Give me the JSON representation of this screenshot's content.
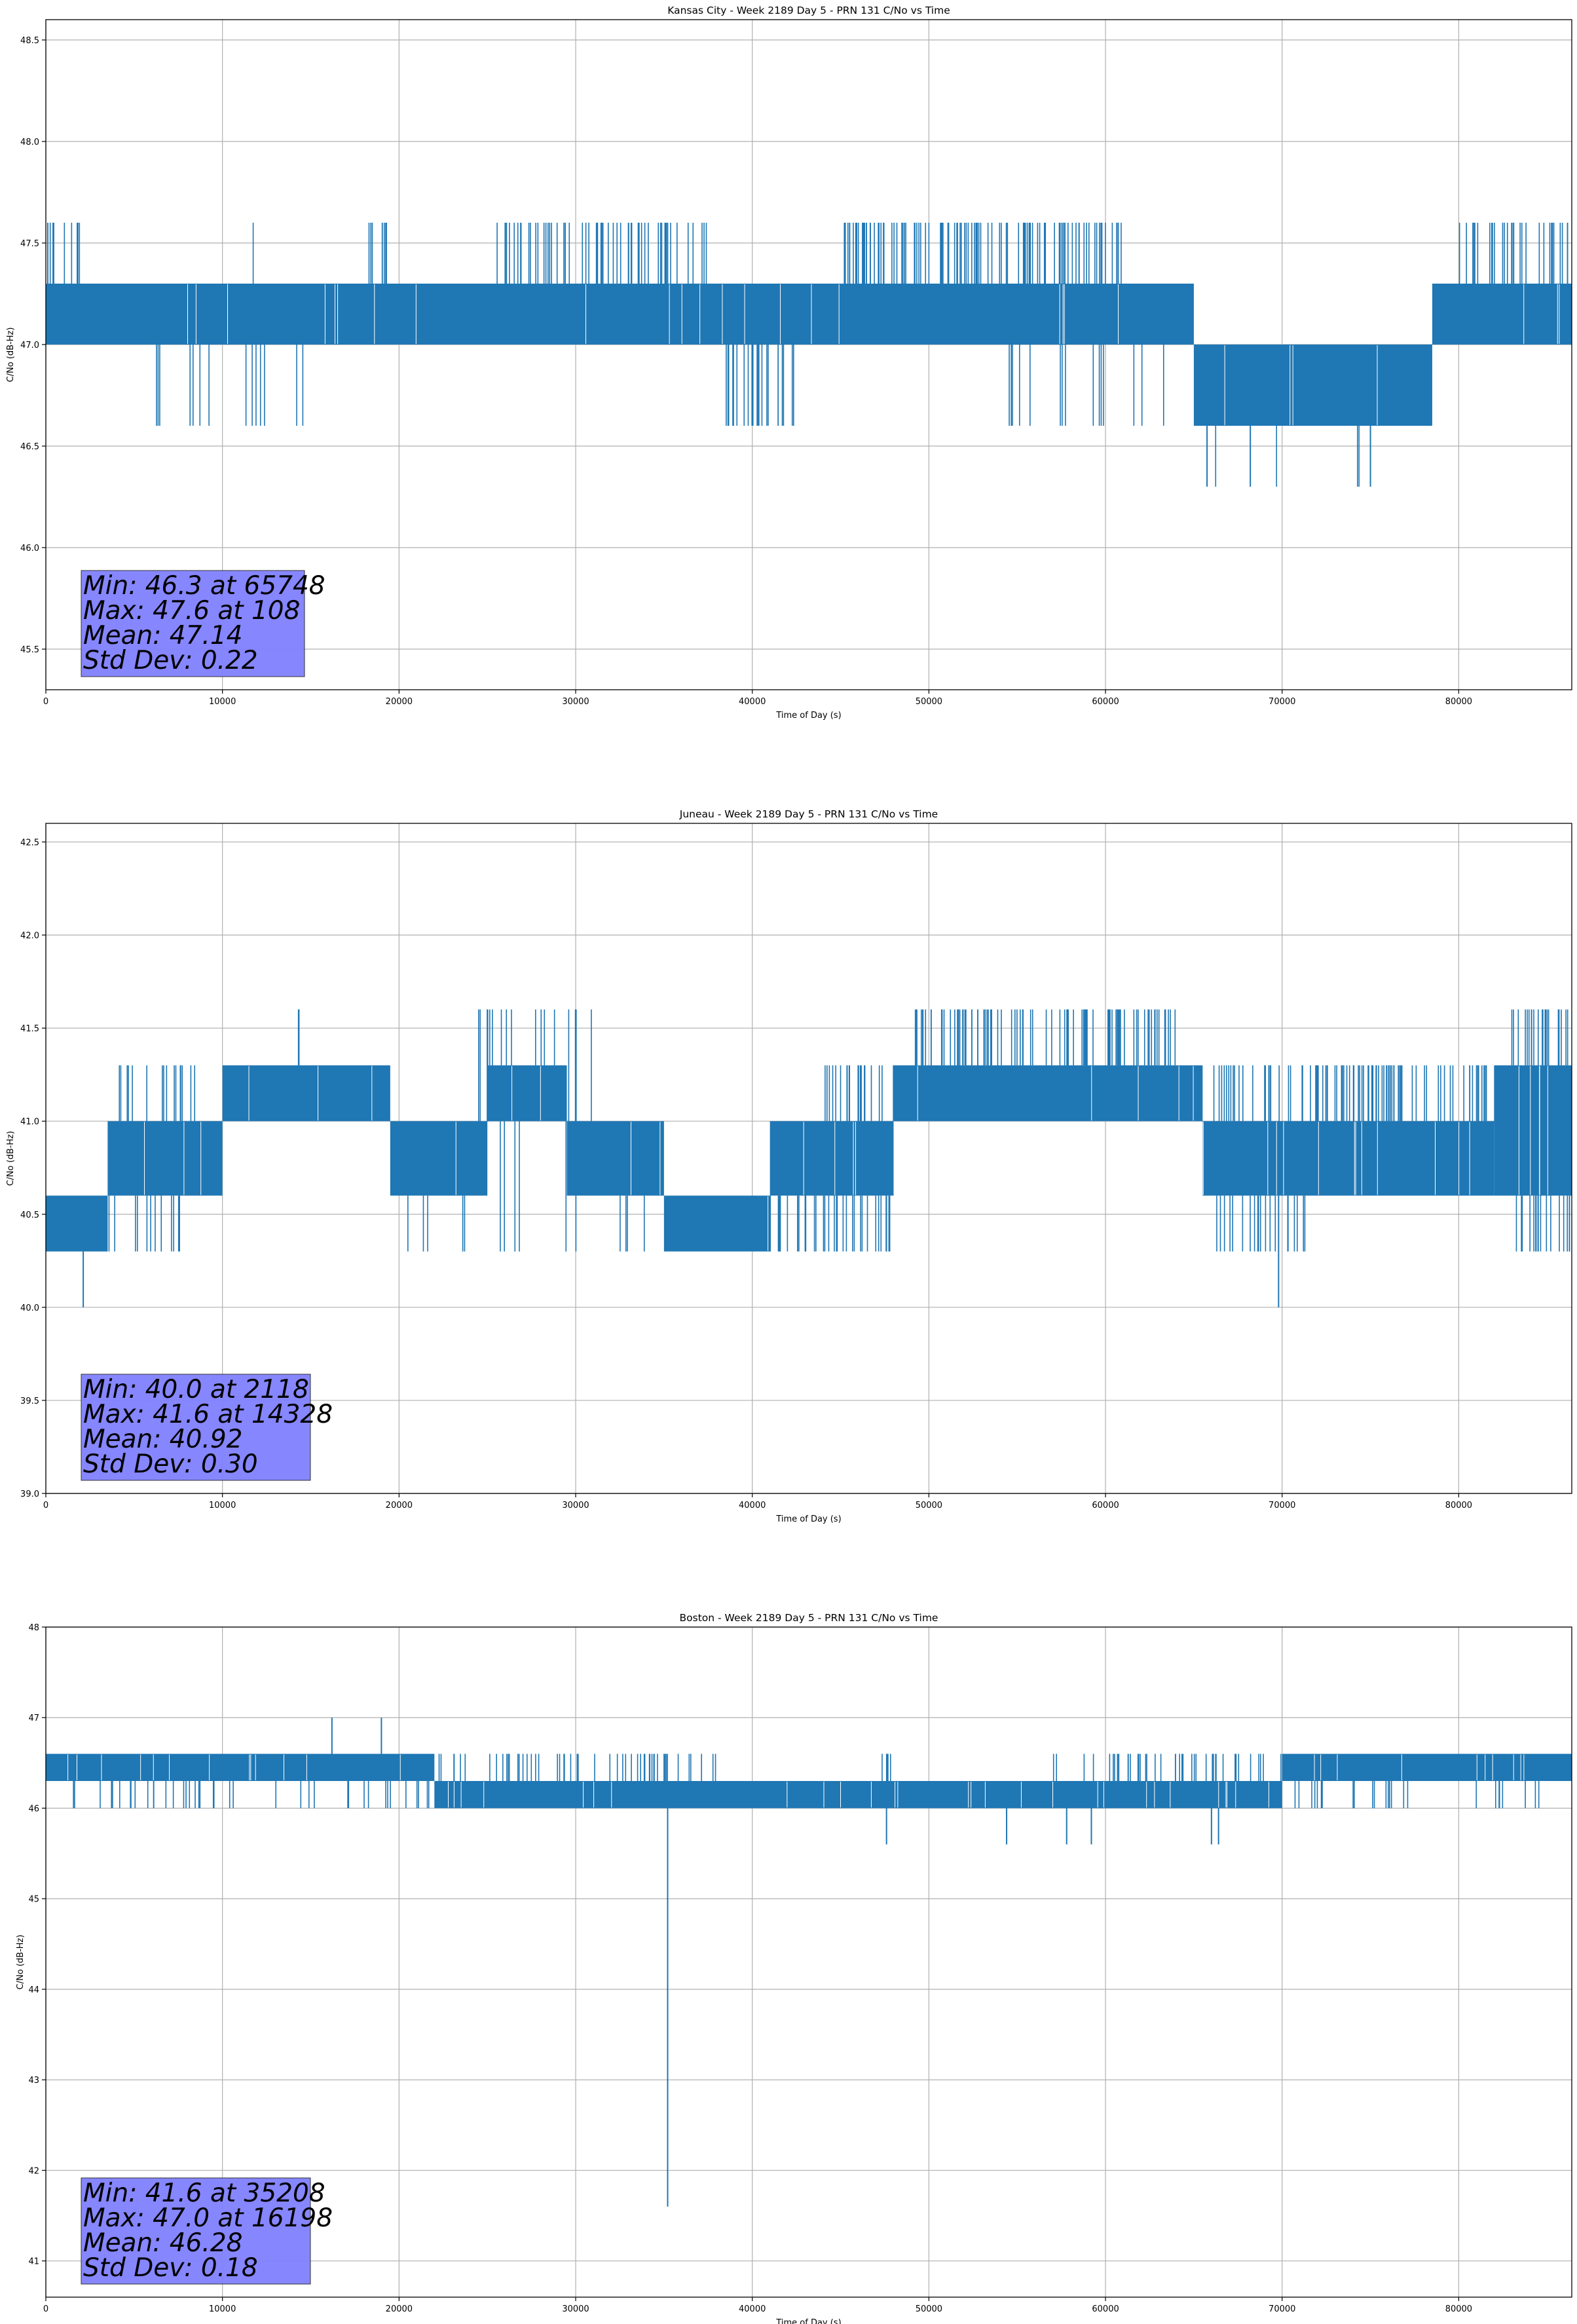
{
  "figure": {
    "panels": [
      {
        "title": "Kansas City - Week 2189 Day 5 - PRN 131 C/No vs Time",
        "xlabel": "Time of Day (s)",
        "ylabel": "C/No (dB-Hz)",
        "stats": [
          "Min: 46.3 at 65748",
          "Max: 47.6 at 108",
          "Mean: 47.14",
          "Std Dev: 0.22"
        ]
      },
      {
        "title": "Juneau - Week 2189 Day 5 - PRN 131 C/No vs Time",
        "xlabel": "Time of Day (s)",
        "ylabel": "C/No (dB-Hz)",
        "stats": [
          "Min: 40.0 at 2118",
          "Max: 41.6 at 14328",
          "Mean: 40.92",
          "Std Dev: 0.30"
        ]
      },
      {
        "title": "Boston - Week 2189 Day 5 - PRN 131 C/No vs Time",
        "xlabel": "Time of Day (s)",
        "ylabel": "C/No (dB-Hz)",
        "stats": [
          "Min: 41.6 at 35208",
          "Max: 47.0 at 16198",
          "Mean: 46.28",
          "Std Dev: 0.18"
        ]
      }
    ]
  },
  "chart_data": [
    {
      "type": "line",
      "title": "Kansas City - Week 2189 Day 5 - PRN 131 C/No vs Time",
      "xlabel": "Time of Day (s)",
      "ylabel": "C/No (dB-Hz)",
      "xlim": [
        0,
        86400
      ],
      "ylim": [
        45.3,
        48.6
      ],
      "xticks": [
        0,
        10000,
        20000,
        30000,
        40000,
        50000,
        60000,
        70000,
        80000
      ],
      "yticks": [
        45.5,
        46.0,
        46.5,
        47.0,
        47.5,
        48.0,
        48.5
      ],
      "ytick_format": 1,
      "grid": true,
      "color": "#1f77b4",
      "series": [
        {
          "segments": [
            {
              "x0": 0,
              "x1": 65000,
              "lo": 47.0,
              "hi": 47.3
            },
            {
              "x0": 65000,
              "x1": 78500,
              "lo": 46.6,
              "hi": 47.0
            },
            {
              "x0": 78500,
              "x1": 86400,
              "lo": 47.0,
              "hi": 47.3
            }
          ],
          "high_bursts": [
            {
              "x0": 0,
              "x1": 2000,
              "level": 47.6,
              "density": 0.25
            },
            {
              "x0": 11500,
              "x1": 11800,
              "level": 47.6,
              "density": 0.3
            },
            {
              "x0": 18000,
              "x1": 19500,
              "level": 47.6,
              "density": 0.35
            },
            {
              "x0": 25500,
              "x1": 37500,
              "level": 47.6,
              "density": 0.3
            },
            {
              "x0": 45000,
              "x1": 61000,
              "level": 47.6,
              "density": 0.4
            },
            {
              "x0": 80000,
              "x1": 86400,
              "level": 47.6,
              "density": 0.3
            }
          ],
          "low_bursts": [
            {
              "x0": 4000,
              "x1": 15000,
              "level": 46.6,
              "density": 0.08
            },
            {
              "x0": 38500,
              "x1": 42500,
              "level": 46.6,
              "density": 0.35
            },
            {
              "x0": 54500,
              "x1": 63500,
              "level": 46.6,
              "density": 0.1
            },
            {
              "x0": 65500,
              "x1": 75500,
              "level": 46.3,
              "density": 0.03
            }
          ],
          "spikes": [
            {
              "x": 65748,
              "y": 46.3
            },
            {
              "x": 68200,
              "y": 46.3
            },
            {
              "x": 75000,
              "y": 46.3
            },
            {
              "x": 108,
              "y": 47.6
            }
          ]
        }
      ],
      "stats": {
        "min": 46.3,
        "min_at": 65748,
        "max": 47.6,
        "max_at": 108,
        "mean": 47.14,
        "std_dev": 0.22
      }
    },
    {
      "type": "line",
      "title": "Juneau - Week 2189 Day 5 - PRN 131 C/No vs Time",
      "xlabel": "Time of Day (s)",
      "ylabel": "C/No (dB-Hz)",
      "xlim": [
        0,
        86400
      ],
      "ylim": [
        39.0,
        42.6
      ],
      "xticks": [
        0,
        10000,
        20000,
        30000,
        40000,
        50000,
        60000,
        70000,
        80000
      ],
      "yticks": [
        39.0,
        39.5,
        40.0,
        40.5,
        41.0,
        41.5,
        42.0,
        42.5
      ],
      "ytick_format": 1,
      "grid": true,
      "color": "#1f77b4",
      "series": [
        {
          "segments": [
            {
              "x0": 0,
              "x1": 3500,
              "lo": 40.3,
              "hi": 40.6
            },
            {
              "x0": 3500,
              "x1": 10000,
              "lo": 40.6,
              "hi": 41.0
            },
            {
              "x0": 10000,
              "x1": 19500,
              "lo": 41.0,
              "hi": 41.3
            },
            {
              "x0": 19500,
              "x1": 25000,
              "lo": 40.6,
              "hi": 41.0
            },
            {
              "x0": 25000,
              "x1": 29500,
              "lo": 41.0,
              "hi": 41.3
            },
            {
              "x0": 29500,
              "x1": 35000,
              "lo": 40.6,
              "hi": 41.0
            },
            {
              "x0": 35000,
              "x1": 41000,
              "lo": 40.3,
              "hi": 40.6
            },
            {
              "x0": 41000,
              "x1": 48000,
              "lo": 40.6,
              "hi": 41.0
            },
            {
              "x0": 48000,
              "x1": 65500,
              "lo": 41.0,
              "hi": 41.3
            },
            {
              "x0": 65500,
              "x1": 82000,
              "lo": 40.6,
              "hi": 41.0
            },
            {
              "x0": 82000,
              "x1": 86400,
              "lo": 40.6,
              "hi": 41.3
            }
          ],
          "high_bursts": [
            {
              "x0": 4000,
              "x1": 9000,
              "level": 41.3,
              "density": 0.2
            },
            {
              "x0": 14300,
              "x1": 14400,
              "level": 41.6,
              "density": 0.5
            },
            {
              "x0": 24500,
              "x1": 32000,
              "level": 41.6,
              "density": 0.15
            },
            {
              "x0": 44000,
              "x1": 49000,
              "level": 41.3,
              "density": 0.3
            },
            {
              "x0": 49000,
              "x1": 64000,
              "level": 41.6,
              "density": 0.35
            },
            {
              "x0": 66000,
              "x1": 82000,
              "level": 41.3,
              "density": 0.35
            },
            {
              "x0": 83000,
              "x1": 86400,
              "level": 41.6,
              "density": 0.4
            }
          ],
          "low_bursts": [
            {
              "x0": 3000,
              "x1": 8000,
              "level": 40.3,
              "density": 0.15
            },
            {
              "x0": 20000,
              "x1": 35000,
              "level": 40.3,
              "density": 0.06
            },
            {
              "x0": 41000,
              "x1": 48000,
              "level": 40.3,
              "density": 0.3
            },
            {
              "x0": 66000,
              "x1": 72000,
              "level": 40.3,
              "density": 0.2
            },
            {
              "x0": 83000,
              "x1": 86400,
              "level": 40.3,
              "density": 0.3
            }
          ],
          "spikes": [
            {
              "x": 2118,
              "y": 40.0
            },
            {
              "x": 69800,
              "y": 40.0
            },
            {
              "x": 14328,
              "y": 41.6
            }
          ]
        }
      ],
      "stats": {
        "min": 40.0,
        "min_at": 2118,
        "max": 41.6,
        "max_at": 14328,
        "mean": 40.92,
        "std_dev": 0.3
      }
    },
    {
      "type": "line",
      "title": "Boston - Week 2189 Day 5 - PRN 131 C/No vs Time",
      "xlabel": "Time of Day (s)",
      "ylabel": "C/No (dB-Hz)",
      "xlim": [
        0,
        86400
      ],
      "ylim": [
        40.6,
        48.0
      ],
      "xticks": [
        0,
        10000,
        20000,
        30000,
        40000,
        50000,
        60000,
        70000,
        80000
      ],
      "yticks": [
        41,
        42,
        43,
        44,
        45,
        46,
        47,
        48
      ],
      "ytick_format": 0,
      "grid": true,
      "color": "#1f77b4",
      "series": [
        {
          "segments": [
            {
              "x0": 0,
              "x1": 22000,
              "lo": 46.3,
              "hi": 46.6
            },
            {
              "x0": 22000,
              "x1": 70000,
              "lo": 46.0,
              "hi": 46.3
            },
            {
              "x0": 70000,
              "x1": 86400,
              "lo": 46.3,
              "hi": 46.6
            }
          ],
          "high_bursts": [
            {
              "x0": 22000,
              "x1": 38000,
              "level": 46.6,
              "density": 0.2
            },
            {
              "x0": 47000,
              "x1": 48000,
              "level": 46.6,
              "density": 0.3
            },
            {
              "x0": 57000,
              "x1": 70000,
              "level": 46.6,
              "density": 0.2
            }
          ],
          "low_bursts": [
            {
              "x0": 1500,
              "x1": 22000,
              "level": 46.0,
              "density": 0.12
            },
            {
              "x0": 70000,
              "x1": 86400,
              "level": 46.0,
              "density": 0.1
            }
          ],
          "spikes": [
            {
              "x": 35208,
              "y": 41.6
            },
            {
              "x": 16198,
              "y": 47.0
            },
            {
              "x": 19000,
              "y": 47.0
            },
            {
              "x": 47600,
              "y": 45.6
            },
            {
              "x": 54400,
              "y": 45.6
            },
            {
              "x": 57800,
              "y": 45.6
            },
            {
              "x": 59200,
              "y": 45.6
            },
            {
              "x": 66000,
              "y": 45.6
            },
            {
              "x": 66400,
              "y": 45.6
            }
          ]
        }
      ],
      "stats": {
        "min": 41.6,
        "min_at": 35208,
        "max": 47.0,
        "max_at": 16198,
        "mean": 46.28,
        "std_dev": 0.18
      }
    }
  ]
}
